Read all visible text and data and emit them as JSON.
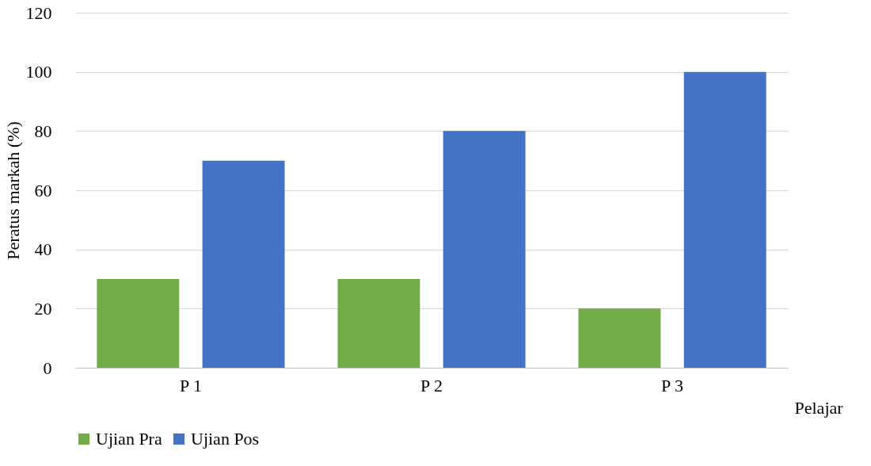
{
  "chart_data": {
    "type": "bar",
    "xlabel": "Pelajar",
    "ylabel": "Peratus markah (%)",
    "categories": [
      "P 1",
      "P 2",
      "P 3"
    ],
    "series": [
      {
        "name": "Ujian Pra",
        "color": "#70ad47",
        "values": [
          30,
          30,
          20
        ]
      },
      {
        "name": "Ujian Pos",
        "color": "#4472c4",
        "values": [
          70,
          80,
          100
        ]
      }
    ],
    "ylim": [
      0,
      120
    ],
    "yticks": [
      0,
      20,
      40,
      60,
      80,
      100,
      120
    ],
    "grid": "y",
    "legend": "bottom"
  }
}
